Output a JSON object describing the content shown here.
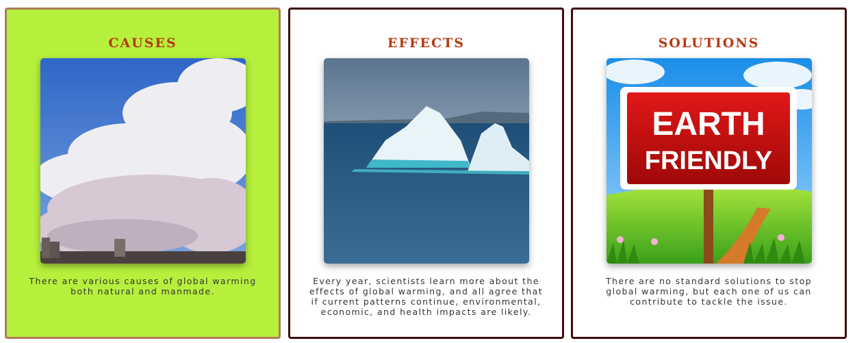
{
  "cards": [
    {
      "title": "CAUSES",
      "image": "power-plant-smoke-image",
      "text": "There are various causes of global warming both natural and manmade."
    },
    {
      "title": "EFFECTS",
      "image": "iceberg-image",
      "text": "Every year, scientists learn more about the effects of global warming, and all agree that if current patterns continue, environmental, economic, and health impacts are likely."
    },
    {
      "title": "SOLUTIONS",
      "image": "earth-friendly-sign-image",
      "sign_line1": "EARTH",
      "sign_line2": "FRIENDLY",
      "text": "There are no standard solutions to stop global warming, but each one of us can contribute to tackle the issue."
    }
  ],
  "colors": {
    "causes_card_bg": "#b6f03c",
    "title_color": "#b83a10",
    "card_border": "#3d0a0a"
  }
}
